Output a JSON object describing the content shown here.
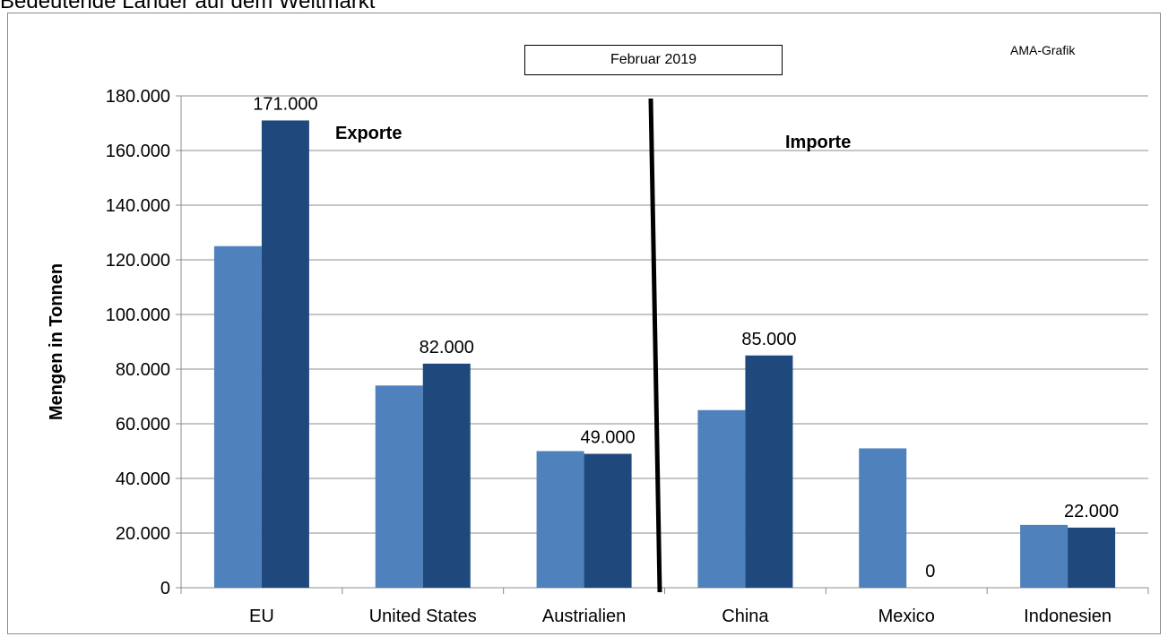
{
  "title": "Bedeutende Länder auf dem Weltmarkt",
  "subtitle": "Februar 2019",
  "source": "AMA-Grafik",
  "colors": {
    "series1": "#4f81bd",
    "series2": "#1f497d",
    "grid": "#8c8c8c",
    "divider": "#000000"
  },
  "chart_data": {
    "type": "bar",
    "title": "Bedeutende Länder auf dem Weltmarkt",
    "subtitle": "Februar 2019",
    "ylabel": "Mengen in Tonnen",
    "xlabel": "",
    "ylim": [
      0,
      180000
    ],
    "yticks": [
      0,
      20000,
      40000,
      60000,
      80000,
      100000,
      120000,
      140000,
      160000,
      180000
    ],
    "ytick_labels": [
      "0",
      "20.000",
      "40.000",
      "60.000",
      "80.000",
      "100.000",
      "120.000",
      "140.000",
      "160.000",
      "180.000"
    ],
    "grid": true,
    "categories": [
      "EU",
      "United States",
      "Austrialien",
      "China",
      "Mexico",
      "Indonesien"
    ],
    "series": [
      {
        "values": [
          125000,
          74000,
          50000,
          65000,
          51000,
          23000
        ]
      },
      {
        "values": [
          171000,
          82000,
          49000,
          85000,
          0,
          22000
        ]
      }
    ],
    "data_labels": [
      "171.000",
      "82.000",
      "49.000",
      "85.000",
      "0",
      "22.000"
    ],
    "annotations": [
      "Exporte",
      "Importe"
    ]
  }
}
